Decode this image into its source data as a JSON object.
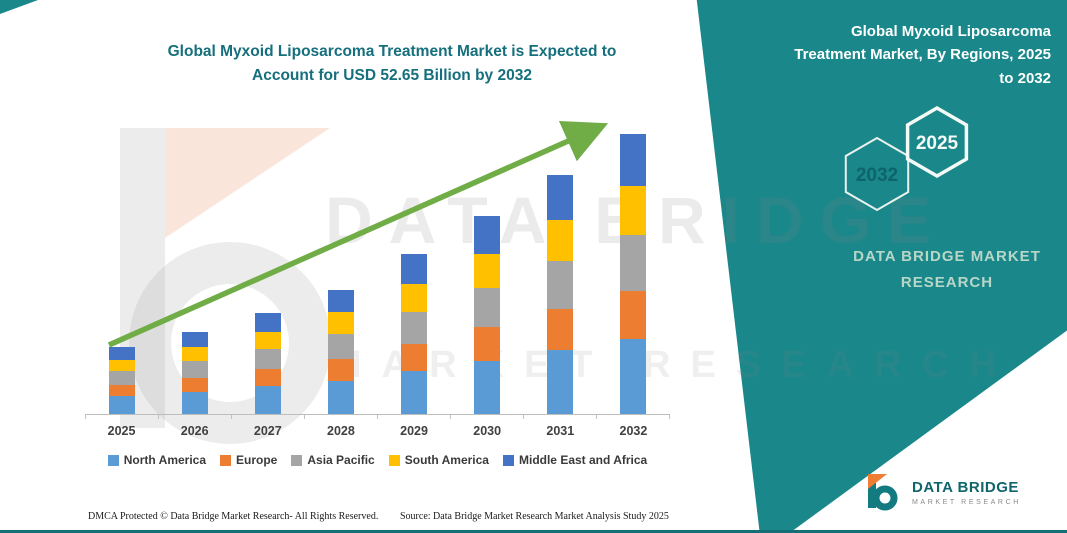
{
  "header": {
    "title_lines": [
      "Global Myxoid Liposarcoma Treatment Market is Expected to",
      "Account for USD 52.65 Billion by 2032"
    ],
    "title_color": "#156f7c"
  },
  "side_panel": {
    "band_color": "#1a878a",
    "heading_lines": [
      "Global Myxoid Liposarcoma",
      "Treatment Market, By Regions, 2025",
      "to 2032"
    ],
    "hexagon_labels": [
      "2032",
      "2025"
    ],
    "brand_lines": [
      "DATA BRIDGE MARKET",
      "RESEARCH"
    ]
  },
  "watermark": {
    "line1": "DATA BRIDGE",
    "line2": "MARKET RESEARCH"
  },
  "chart_data": {
    "type": "bar",
    "stacked": true,
    "title": "Global Myxoid Liposarcoma Treatment Market is Expected to Account for USD 52.65 Billion by 2032",
    "xlabel": "",
    "ylabel": "",
    "unit": "USD Billion (estimated from bar heights; 2032 total stated as 52.65)",
    "ylim": [
      0,
      55
    ],
    "y_axis_labels_visible": false,
    "grid": false,
    "legend_position": "bottom",
    "categories": [
      "2025",
      "2026",
      "2027",
      "2028",
      "2029",
      "2030",
      "2031",
      "2032"
    ],
    "series": [
      {
        "name": "North America",
        "color": "#5B9BD5",
        "values": [
          3.4,
          4.2,
          5.2,
          6.3,
          8.1,
          10.0,
          12.1,
          14.2
        ]
      },
      {
        "name": "Europe",
        "color": "#ED7D31",
        "values": [
          2.1,
          2.6,
          3.2,
          4.0,
          5.1,
          6.3,
          7.6,
          9.0
        ]
      },
      {
        "name": "Asia Pacific",
        "color": "#A5A5A5",
        "values": [
          2.5,
          3.1,
          3.8,
          4.7,
          6.0,
          7.4,
          9.0,
          10.5
        ]
      },
      {
        "name": "South America",
        "color": "#FFC000",
        "values": [
          2.2,
          2.7,
          3.3,
          4.1,
          5.2,
          6.4,
          7.8,
          9.15
        ]
      },
      {
        "name": "Middle East and Africa",
        "color": "#4472C4",
        "values": [
          2.4,
          2.9,
          3.6,
          4.3,
          5.7,
          7.1,
          8.4,
          9.8
        ]
      }
    ],
    "totals": [
      12.6,
      15.5,
      19.1,
      23.4,
      30.1,
      37.2,
      44.9,
      52.65
    ],
    "annotations": [
      "green upward growth trend arrow across bars"
    ],
    "trend_arrow_color": "#70AD47"
  },
  "footer": {
    "dmca": "DMCA Protected © Data Bridge Market Research-  All Rights Reserved.",
    "source": "Source: Data Bridge Market Research  Market Analysis Study 2025"
  },
  "logo": {
    "name": "DATA BRIDGE",
    "subtitle": "MARKET RESEARCH"
  }
}
